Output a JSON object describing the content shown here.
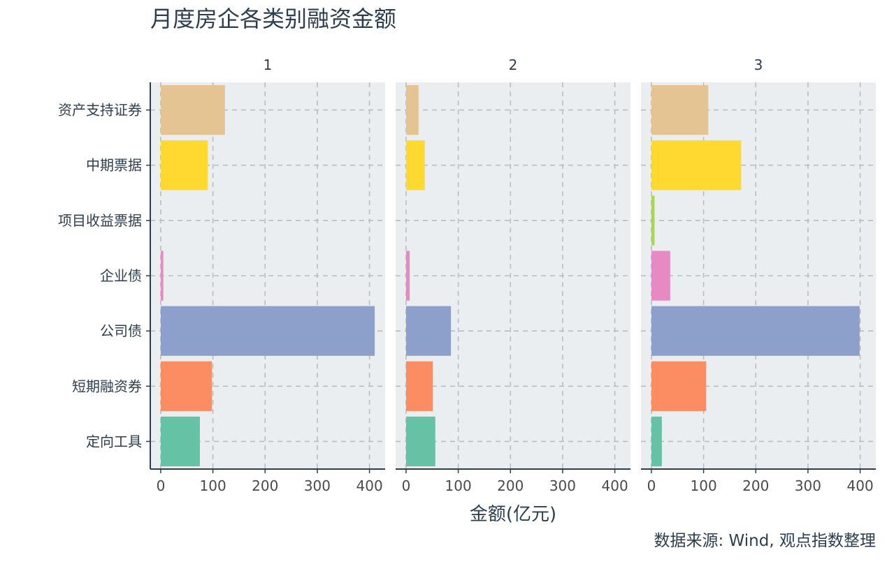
{
  "chart_data": {
    "type": "bar",
    "orientation": "horizontal",
    "title": "月度房企各类别融资金额",
    "xlabel": "金额(亿元)",
    "ylabel": "",
    "caption": "数据来源: Wind, 观点指数整理",
    "categories": [
      "资产支持证券",
      "中期票据",
      "项目收益票据",
      "企业债",
      "公司债",
      "短期融资券",
      "定向工具"
    ],
    "category_colors": [
      "#e5c494",
      "#ffd92f",
      "#a6d854",
      "#e78ac3",
      "#8da0cb",
      "#fc8d62",
      "#66c2a5"
    ],
    "xlim": [
      -20,
      430
    ],
    "xticks": [
      0,
      100,
      200,
      300,
      400
    ],
    "grid": true,
    "legend": "none",
    "panels": [
      {
        "name": "1",
        "values": [
          123,
          90,
          0,
          5,
          410,
          98,
          75
        ]
      },
      {
        "name": "2",
        "values": [
          24,
          36,
          0,
          7,
          86,
          51,
          56
        ]
      },
      {
        "name": "3",
        "values": [
          109,
          172,
          6,
          36,
          399,
          105,
          20
        ]
      }
    ]
  }
}
